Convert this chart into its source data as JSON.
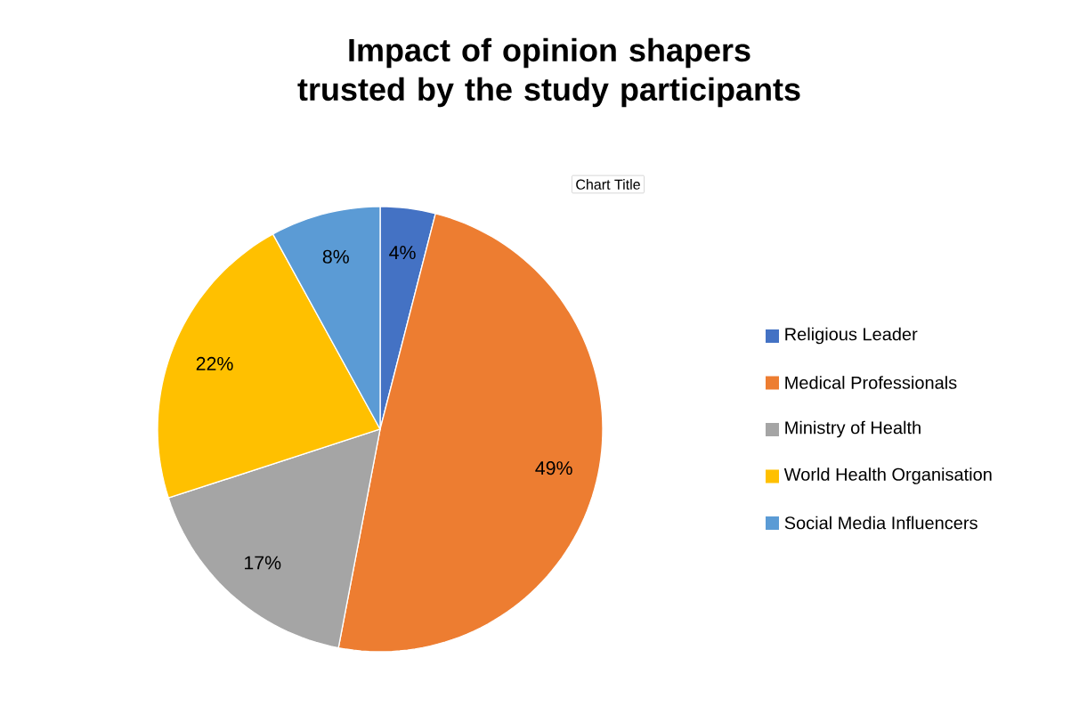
{
  "chart_data": {
    "type": "pie",
    "title": "Impact of opinion shapers trusted by the study participants",
    "categories": [
      "Religious Leader",
      "Medical Professionals",
      "Ministry of Health",
      "World Health Organisation",
      "Social Media Influencers"
    ],
    "values": [
      4,
      49,
      17,
      22,
      8
    ],
    "value_labels": [
      "4%",
      "49%",
      "17%",
      "22%",
      "8%"
    ],
    "colors": [
      "#4472c4",
      "#ed7d31",
      "#a5a5a5",
      "#ffc000",
      "#5b9bd5"
    ],
    "legend": "right",
    "annotations": [
      "Chart Title"
    ]
  }
}
